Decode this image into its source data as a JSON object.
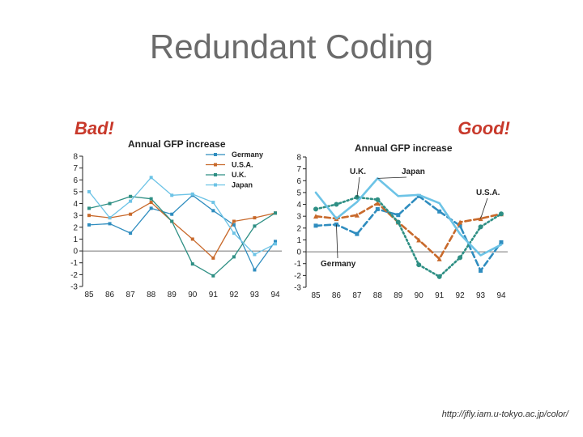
{
  "slide": {
    "title": "Redundant Coding",
    "source_url": "http://jfly.iam.u-tokyo.ac.jp/color/"
  },
  "chart_data": [
    {
      "type": "line",
      "panel_label": "Bad!",
      "title": "Annual GFP increase",
      "x": [
        "85",
        "86",
        "87",
        "88",
        "89",
        "90",
        "91",
        "92",
        "93",
        "94"
      ],
      "y_ticks": [
        "8",
        "7",
        "6",
        "5",
        "4",
        "3",
        "2",
        "1",
        "0",
        "-1",
        "-2",
        "-3"
      ],
      "ylim": [
        -3,
        8
      ],
      "legend_position": "top-right",
      "series": [
        {
          "name": "Germany",
          "color": "#2f8dbf",
          "values": [
            2.2,
            2.3,
            1.5,
            3.6,
            3.1,
            4.7,
            3.4,
            2.2,
            -1.6,
            0.8
          ]
        },
        {
          "name": "U.S.A.",
          "color": "#c8692b",
          "values": [
            3.0,
            2.8,
            3.1,
            4.1,
            2.5,
            1.0,
            -0.6,
            2.5,
            2.8,
            3.2
          ]
        },
        {
          "name": "U.K.",
          "color": "#2e8f84",
          "values": [
            3.6,
            4.0,
            4.6,
            4.4,
            2.5,
            -1.1,
            -2.1,
            -0.5,
            2.1,
            3.2
          ]
        },
        {
          "name": "Japan",
          "color": "#6cc3e6",
          "values": [
            5.0,
            2.8,
            4.2,
            6.2,
            4.7,
            4.8,
            4.1,
            1.5,
            -0.3,
            0.6
          ]
        }
      ]
    },
    {
      "type": "line",
      "panel_label": "Good!",
      "title": "Annual GFP increase",
      "x": [
        "85",
        "86",
        "87",
        "88",
        "89",
        "90",
        "91",
        "92",
        "93",
        "94"
      ],
      "y_ticks": [
        "8",
        "7",
        "6",
        "5",
        "4",
        "3",
        "2",
        "1",
        "0",
        "-1",
        "-2",
        "-3"
      ],
      "ylim": [
        -3,
        8
      ],
      "legend_position": "direct labels",
      "series": [
        {
          "name": "Germany",
          "color": "#2f8dbf",
          "dash": "dashed",
          "values": [
            2.2,
            2.3,
            1.5,
            3.6,
            3.1,
            4.7,
            3.4,
            2.2,
            -1.6,
            0.8
          ]
        },
        {
          "name": "U.S.A.",
          "color": "#c8692b",
          "dash": "dashed",
          "values": [
            3.0,
            2.8,
            3.1,
            4.1,
            2.5,
            1.0,
            -0.6,
            2.5,
            2.8,
            3.2
          ]
        },
        {
          "name": "U.K.",
          "color": "#2e8f84",
          "dash": "dotted",
          "values": [
            3.6,
            4.0,
            4.6,
            4.4,
            2.5,
            -1.1,
            -2.1,
            -0.5,
            2.1,
            3.2
          ]
        },
        {
          "name": "Japan",
          "color": "#6cc3e6",
          "dash": "solid",
          "values": [
            5.0,
            2.8,
            4.2,
            6.2,
            4.7,
            4.8,
            4.1,
            1.5,
            -0.3,
            0.6
          ]
        }
      ]
    }
  ]
}
